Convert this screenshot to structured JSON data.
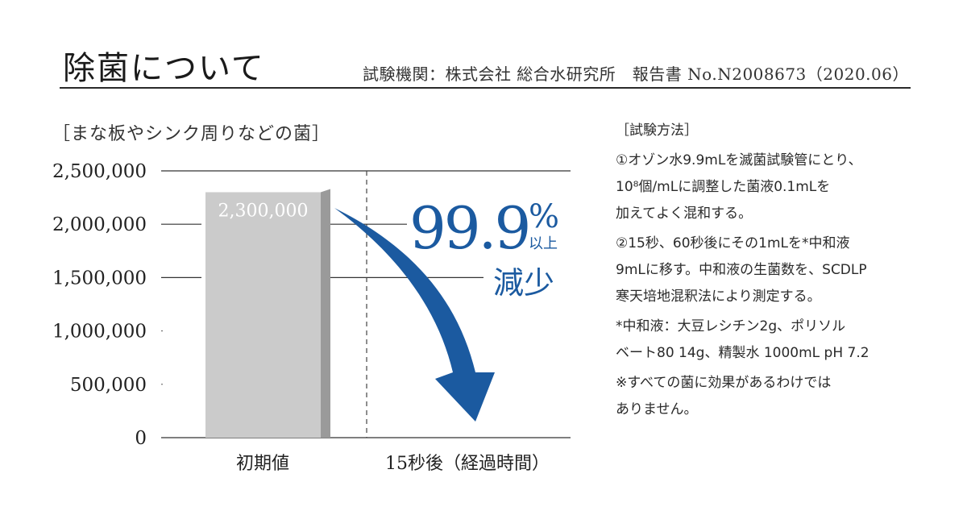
{
  "header": {
    "title": "除菌について",
    "lab_info": "試験機関：株式会社 総合水研究所　報告書 No.N2008673（2020.06）"
  },
  "chart_data": {
    "type": "bar",
    "title": "［まな板やシンク周りなどの菌］",
    "categories": [
      "初期値",
      "15秒後（経過時間）"
    ],
    "values": [
      2300000,
      null
    ],
    "data_labels": [
      "2,300,000",
      ""
    ],
    "ylim": [
      0,
      2500000
    ],
    "yticks": [
      0,
      500000,
      1000000,
      1500000,
      2000000,
      2500000
    ],
    "ytick_labels": [
      "0",
      "500,000",
      "1,000,000",
      "1,500,000",
      "2,000,000",
      "2,500,000"
    ],
    "grid": true,
    "annotation": {
      "value": "99.9",
      "unit": "%",
      "qualifier": "以上",
      "label": "減少"
    },
    "colors": {
      "bar_face": "#cbcbcb",
      "bar_side": "#9a9a9a",
      "arrow": "#1b5aa0",
      "annotation": "#1b5aa0"
    }
  },
  "method": {
    "heading": "［試験方法］",
    "paragraphs": [
      [
        "①オゾン水9.9mLを滅菌試験管にとり、",
        "10⁸個/mLに調整した菌液0.1mLを",
        "加えてよく混和する。"
      ],
      [
        "②15秒、60秒後にその1mLを*中和液",
        "9mLに移す。中和液の生菌数を、SCDLP",
        "寒天培地混釈法により測定する。"
      ],
      [
        "*中和液：大豆レシチン2g、ポリソル",
        "ベート80 14g、精製水 1000mL pH 7.2"
      ],
      [
        "※すべての菌に効果があるわけでは",
        "ありません。"
      ]
    ]
  }
}
